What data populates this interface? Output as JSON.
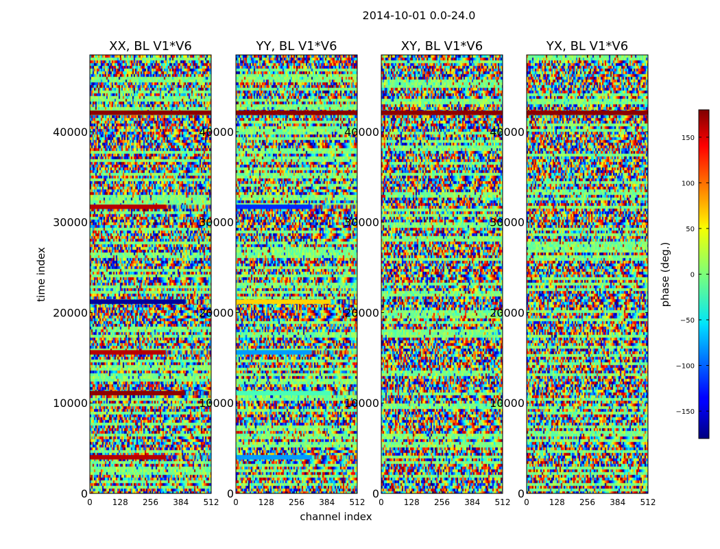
{
  "chart_data": {
    "type": "heatmap",
    "title": "2014-10-01 0.0-24.0",
    "xlabel": "channel index",
    "ylabel": "time index",
    "colorbar_label": "phase (deg.)",
    "xlim": [
      0,
      512
    ],
    "ylim": [
      0,
      48500
    ],
    "clim": [
      -180,
      180
    ],
    "colormap": "jet",
    "x_ticks": [
      "0",
      "128",
      "256",
      "384",
      "512"
    ],
    "x_tick_values": [
      0,
      128,
      256,
      384,
      512
    ],
    "y_ticks": [
      "0",
      "10000",
      "20000",
      "30000",
      "40000"
    ],
    "y_tick_values": [
      0,
      10000,
      20000,
      30000,
      40000
    ],
    "colorbar_ticks": [
      "−150",
      "−100",
      "−50",
      "0",
      "50",
      "100",
      "150"
    ],
    "colorbar_tick_values": [
      -150,
      -100,
      -50,
      0,
      50,
      100,
      150
    ],
    "panels": [
      {
        "title": "XX, BL V1*V6",
        "horizontal_bands": [
          {
            "t": 42100,
            "x_end": 512,
            "phase": 175
          },
          {
            "t": 31700,
            "x_end": 320,
            "phase": 160
          },
          {
            "t": 21200,
            "x_end": 400,
            "phase": -170
          },
          {
            "t": 15600,
            "x_end": 320,
            "phase": 160
          },
          {
            "t": 11100,
            "x_end": 400,
            "phase": 175
          },
          {
            "t": 4000,
            "x_end": 320,
            "phase": 160
          }
        ]
      },
      {
        "title": "YY, BL V1*V6",
        "horizontal_bands": [
          {
            "t": 42100,
            "x_end": 512,
            "phase": 175
          },
          {
            "t": 31700,
            "x_end": 320,
            "phase": -120
          },
          {
            "t": 21200,
            "x_end": 400,
            "phase": 60
          },
          {
            "t": 15600,
            "x_end": 320,
            "phase": -80
          },
          {
            "t": 11100,
            "x_end": 400,
            "phase": -20
          },
          {
            "t": 4000,
            "x_end": 320,
            "phase": -80
          }
        ]
      },
      {
        "title": "XY, BL V1*V6",
        "horizontal_bands": [
          {
            "t": 42100,
            "x_end": 512,
            "phase": 175
          }
        ]
      },
      {
        "title": "YX, BL V1*V6",
        "horizontal_bands": [
          {
            "t": 42100,
            "x_end": 512,
            "phase": 175
          }
        ]
      }
    ]
  }
}
